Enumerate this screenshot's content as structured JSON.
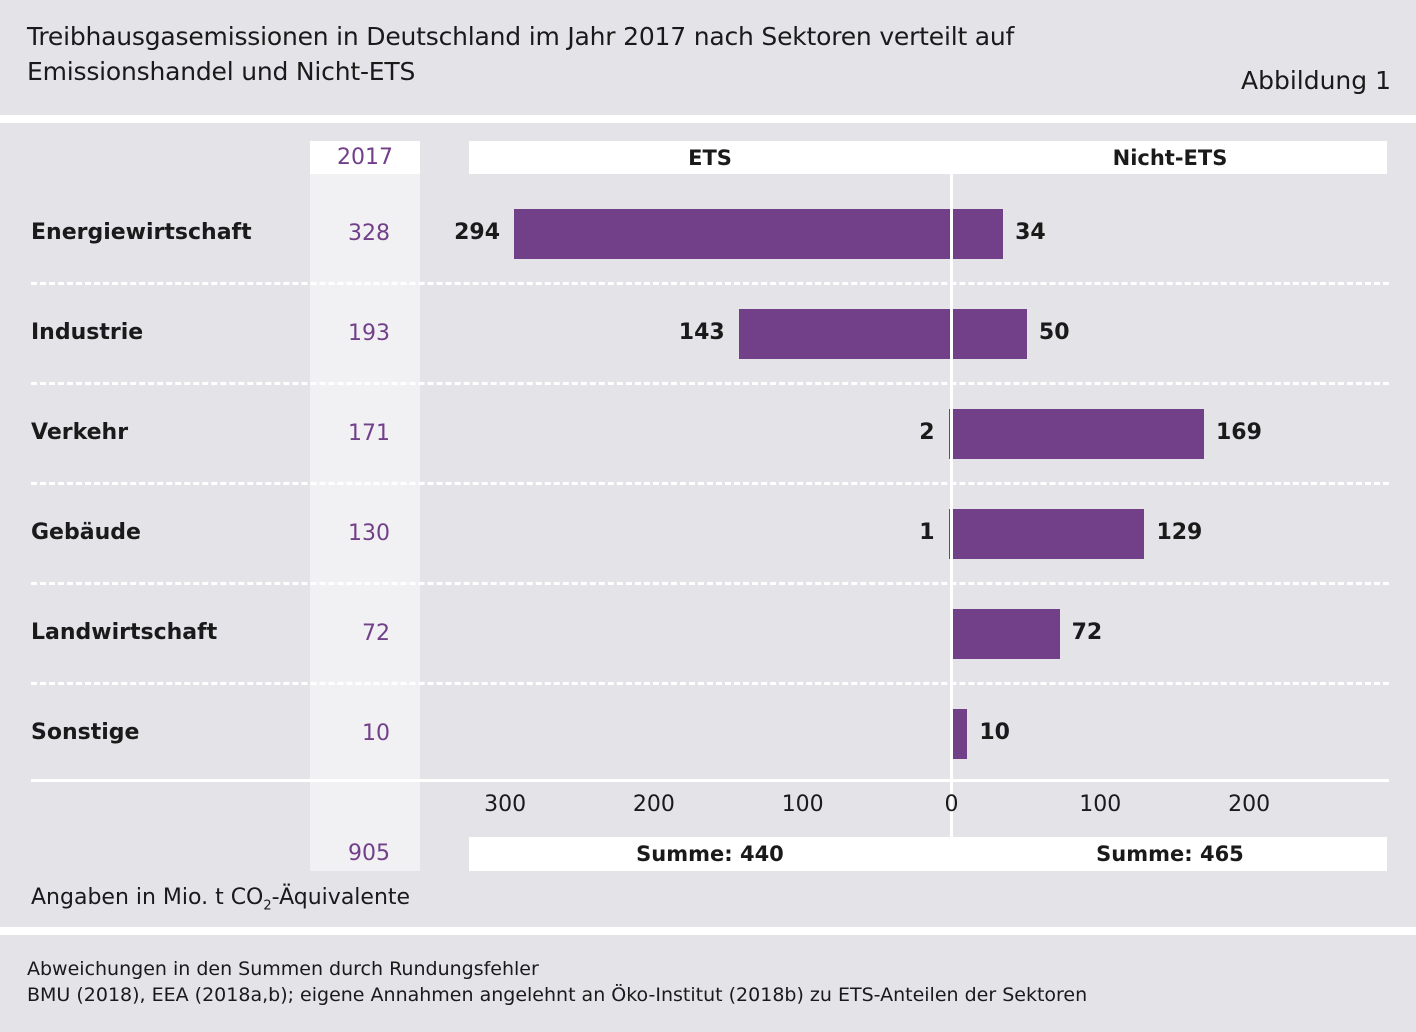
{
  "header": {
    "title_line1": "Treibhausgasemissionen in Deutschland im Jahr 2017 nach Sektoren verteilt auf",
    "title_line2": "Emissionshandel und Nicht-ETS",
    "figure_label": "Abbildung 1"
  },
  "columns": {
    "year": "2017",
    "ets": "ETS",
    "non_ets": "Nicht-ETS"
  },
  "chart_data": {
    "type": "bar",
    "orientation": "horizontal-diverging",
    "categories": [
      "Energiewirtschaft",
      "Industrie",
      "Verkehr",
      "Gebäude",
      "Landwirtschaft",
      "Sonstige"
    ],
    "totals": [
      "328",
      "193",
      "171",
      "130",
      "72",
      "10"
    ],
    "series": [
      {
        "name": "ETS",
        "values": [
          294,
          143,
          2,
          1,
          0,
          0
        ],
        "labels": [
          "294",
          "143",
          "2",
          "1",
          "",
          ""
        ]
      },
      {
        "name": "Nicht-ETS",
        "values": [
          34,
          50,
          169,
          129,
          72,
          10
        ],
        "labels": [
          "34",
          "50",
          "169",
          "129",
          "72",
          "10"
        ]
      }
    ],
    "xlim": [
      -300,
      280
    ],
    "x_ticks": [
      "300",
      "200",
      "100",
      "0",
      "100",
      "200"
    ],
    "x_tick_values": [
      -300,
      -200,
      -100,
      0,
      100,
      200
    ],
    "bar_color": "#723f89"
  },
  "sums": {
    "ets": "Summe: 440",
    "non_ets": "Summe: 465",
    "total": "905"
  },
  "unit_note": {
    "prefix": "Angaben in Mio. t CO",
    "sub": "2",
    "suffix": "-Äquivalente"
  },
  "footer": {
    "note": "Abweichungen in den Summen durch Rundungsfehler",
    "source": "BMU (2018), EEA (2018a,b); eigene Annahmen angelehnt an Öko-Institut (2018b) zu ETS-Anteilen der Sektoren"
  }
}
